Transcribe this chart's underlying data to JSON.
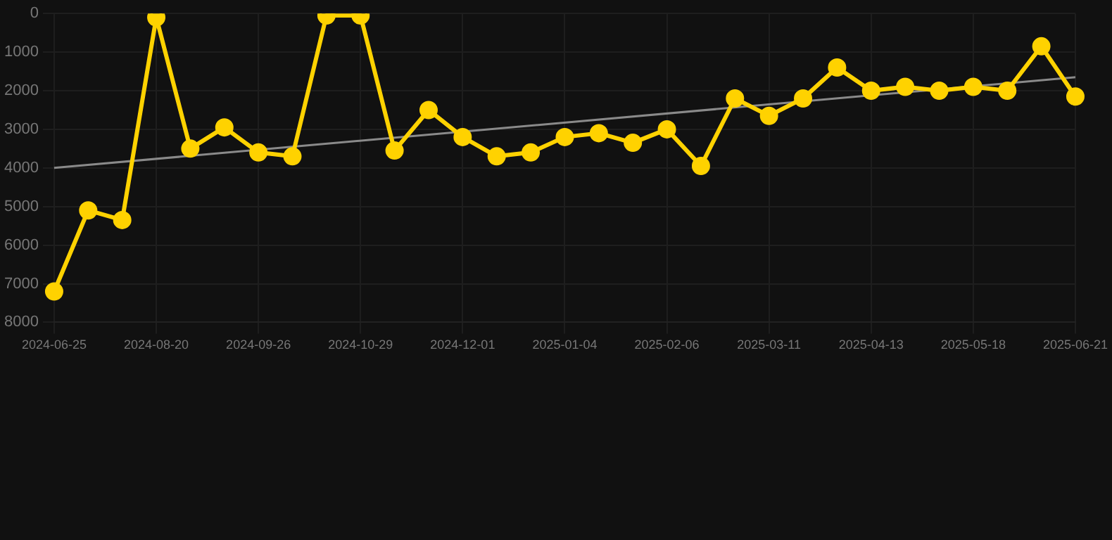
{
  "chart_data": {
    "type": "line",
    "categories": [
      "2024-06-25",
      null,
      null,
      "2024-08-20",
      null,
      null,
      "2024-09-26",
      null,
      null,
      "2024-10-29",
      null,
      null,
      "2024-12-01",
      null,
      null,
      "2025-01-04",
      null,
      null,
      "2025-02-06",
      null,
      null,
      "2025-03-11",
      null,
      null,
      "2025-04-13",
      null,
      null,
      "2025-05-18",
      null,
      null,
      "2025-06-21"
    ],
    "series": [
      {
        "color": "#ffd200",
        "marker": "circle",
        "values": [
          7200,
          5100,
          5350,
          100,
          3500,
          2950,
          3600,
          3700,
          50,
          50,
          3550,
          2500,
          3200,
          3700,
          3600,
          3200,
          3100,
          3350,
          3000,
          3950,
          2200,
          2650,
          2200,
          1400,
          2000,
          1900,
          2000,
          1900,
          2000,
          850,
          2150
        ]
      },
      {
        "type": "line",
        "color": "#8a8a8a",
        "marker": "none",
        "values": [
          4000,
          null,
          null,
          null,
          null,
          null,
          null,
          null,
          null,
          null,
          null,
          null,
          null,
          null,
          null,
          null,
          null,
          null,
          null,
          null,
          null,
          null,
          null,
          null,
          null,
          null,
          null,
          null,
          null,
          null,
          1650
        ]
      }
    ],
    "ylim": [
      8000,
      0
    ],
    "yticks": [
      0,
      1000,
      2000,
      3000,
      4000,
      5000,
      6000,
      7000,
      8000
    ],
    "grid": true,
    "legend": false
  }
}
